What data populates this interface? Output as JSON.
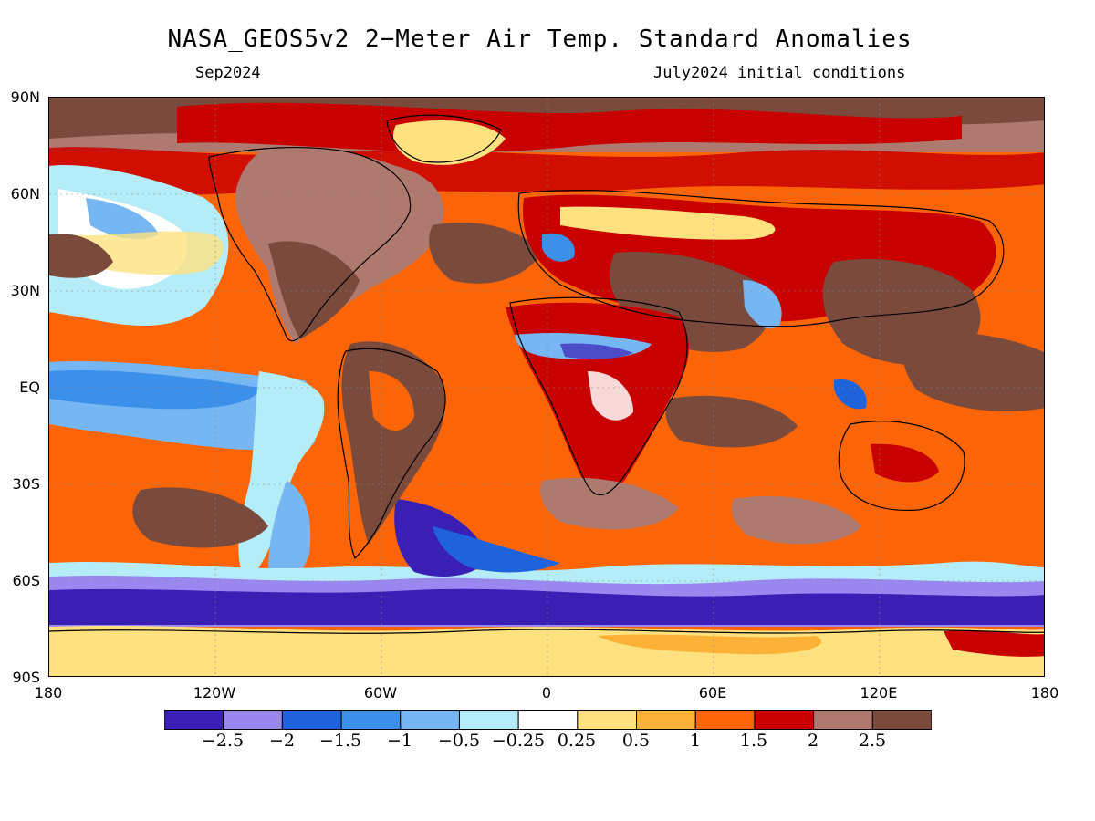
{
  "title": "NASA_GEOS5v2 2−Meter Air Temp. Standard Anomalies",
  "subtitle_left": "Sep2024",
  "subtitle_right": "July2024 initial conditions",
  "lat_ticks": [
    "90N",
    "60N",
    "30N",
    "EQ",
    "30S",
    "60S",
    "90S"
  ],
  "lon_ticks": [
    "180",
    "120W",
    "60W",
    "0",
    "60E",
    "120E",
    "180"
  ],
  "colorbar": {
    "colors": [
      "#3a1fb5",
      "#9a87f0",
      "#1e63dc",
      "#3c90ea",
      "#75b6f3",
      "#b4ecf7",
      "#ffffff",
      "#ffe27f",
      "#fdb237",
      "#fb6508",
      "#c90000",
      "#ae7a70",
      "#7a4a3d"
    ],
    "labels": [
      "−2.5",
      "−2",
      "−1.5",
      "−1",
      "−0.5",
      "−0.25",
      "0.25",
      "0.5",
      "1",
      "1.5",
      "2",
      "2.5"
    ]
  }
}
